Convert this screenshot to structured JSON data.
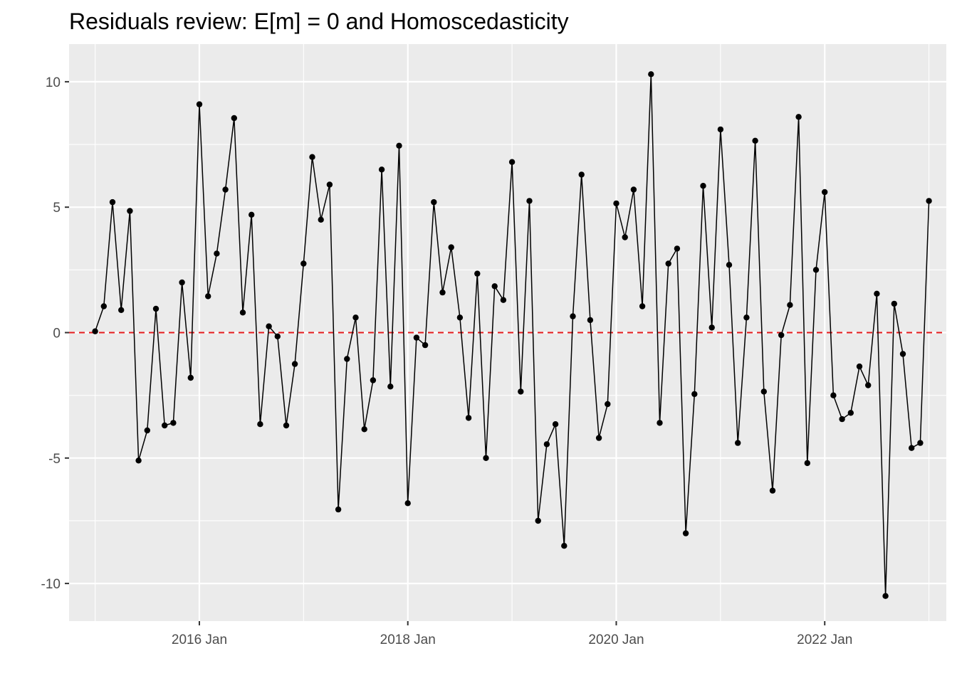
{
  "chart_data": {
    "type": "line",
    "title": "Residuals review: E[m] = 0 and Homoscedasticity",
    "xlabel": "",
    "ylabel": "",
    "x_tick_labels": [
      "2016 Jan",
      "2018 Jan",
      "2020 Jan",
      "2022 Jan"
    ],
    "y_tick_labels": [
      "-10",
      "-5",
      "0",
      "5",
      "10"
    ],
    "y_ticks": [
      -10,
      -5,
      0,
      5,
      10
    ],
    "ylim": [
      -11.5,
      11.5
    ],
    "xlim": [
      "2014-10",
      "2023-03"
    ],
    "grid": true,
    "reference_line": {
      "y": 0,
      "color": "#e41a1c",
      "style": "dashed"
    },
    "colors": {
      "panel": "#ebebeb",
      "grid": "#ffffff",
      "series": "#000000"
    },
    "start_month": "2015-01",
    "series": [
      {
        "values": [
          0.05,
          1.05,
          5.2,
          0.9,
          4.85,
          -5.1,
          -3.9,
          0.95,
          -3.7,
          -3.6,
          2.0,
          -1.8,
          9.1,
          1.45,
          3.15,
          5.7,
          8.55,
          0.8,
          4.7,
          -3.65,
          0.25,
          -0.15,
          -3.7,
          -1.25,
          2.75,
          7.0,
          4.5,
          5.9,
          -7.05,
          -1.05,
          0.6,
          -3.85,
          -1.9,
          6.5,
          -2.15,
          7.45,
          -6.8,
          -0.2,
          -0.5,
          5.2,
          1.6,
          3.4,
          0.6,
          -3.4,
          2.35,
          -5.0,
          1.85,
          1.3,
          6.8,
          -2.35,
          5.25,
          -7.5,
          -4.45,
          -3.65,
          -8.5,
          0.65,
          6.3,
          0.5,
          -4.2,
          -2.85,
          5.15,
          3.8,
          5.7,
          1.05,
          10.3,
          -3.6,
          2.75,
          3.35,
          -8.0,
          -2.45,
          5.85,
          0.2,
          8.1,
          2.7,
          -4.4,
          0.6,
          7.65,
          -2.35,
          -6.3,
          -0.1,
          1.1,
          8.6,
          -5.2,
          2.5,
          5.6,
          -2.5,
          -3.45,
          -3.2,
          -1.35,
          -2.1,
          1.55,
          -10.5,
          1.15,
          -0.85,
          -4.6,
          -4.4,
          5.25
        ]
      }
    ]
  }
}
